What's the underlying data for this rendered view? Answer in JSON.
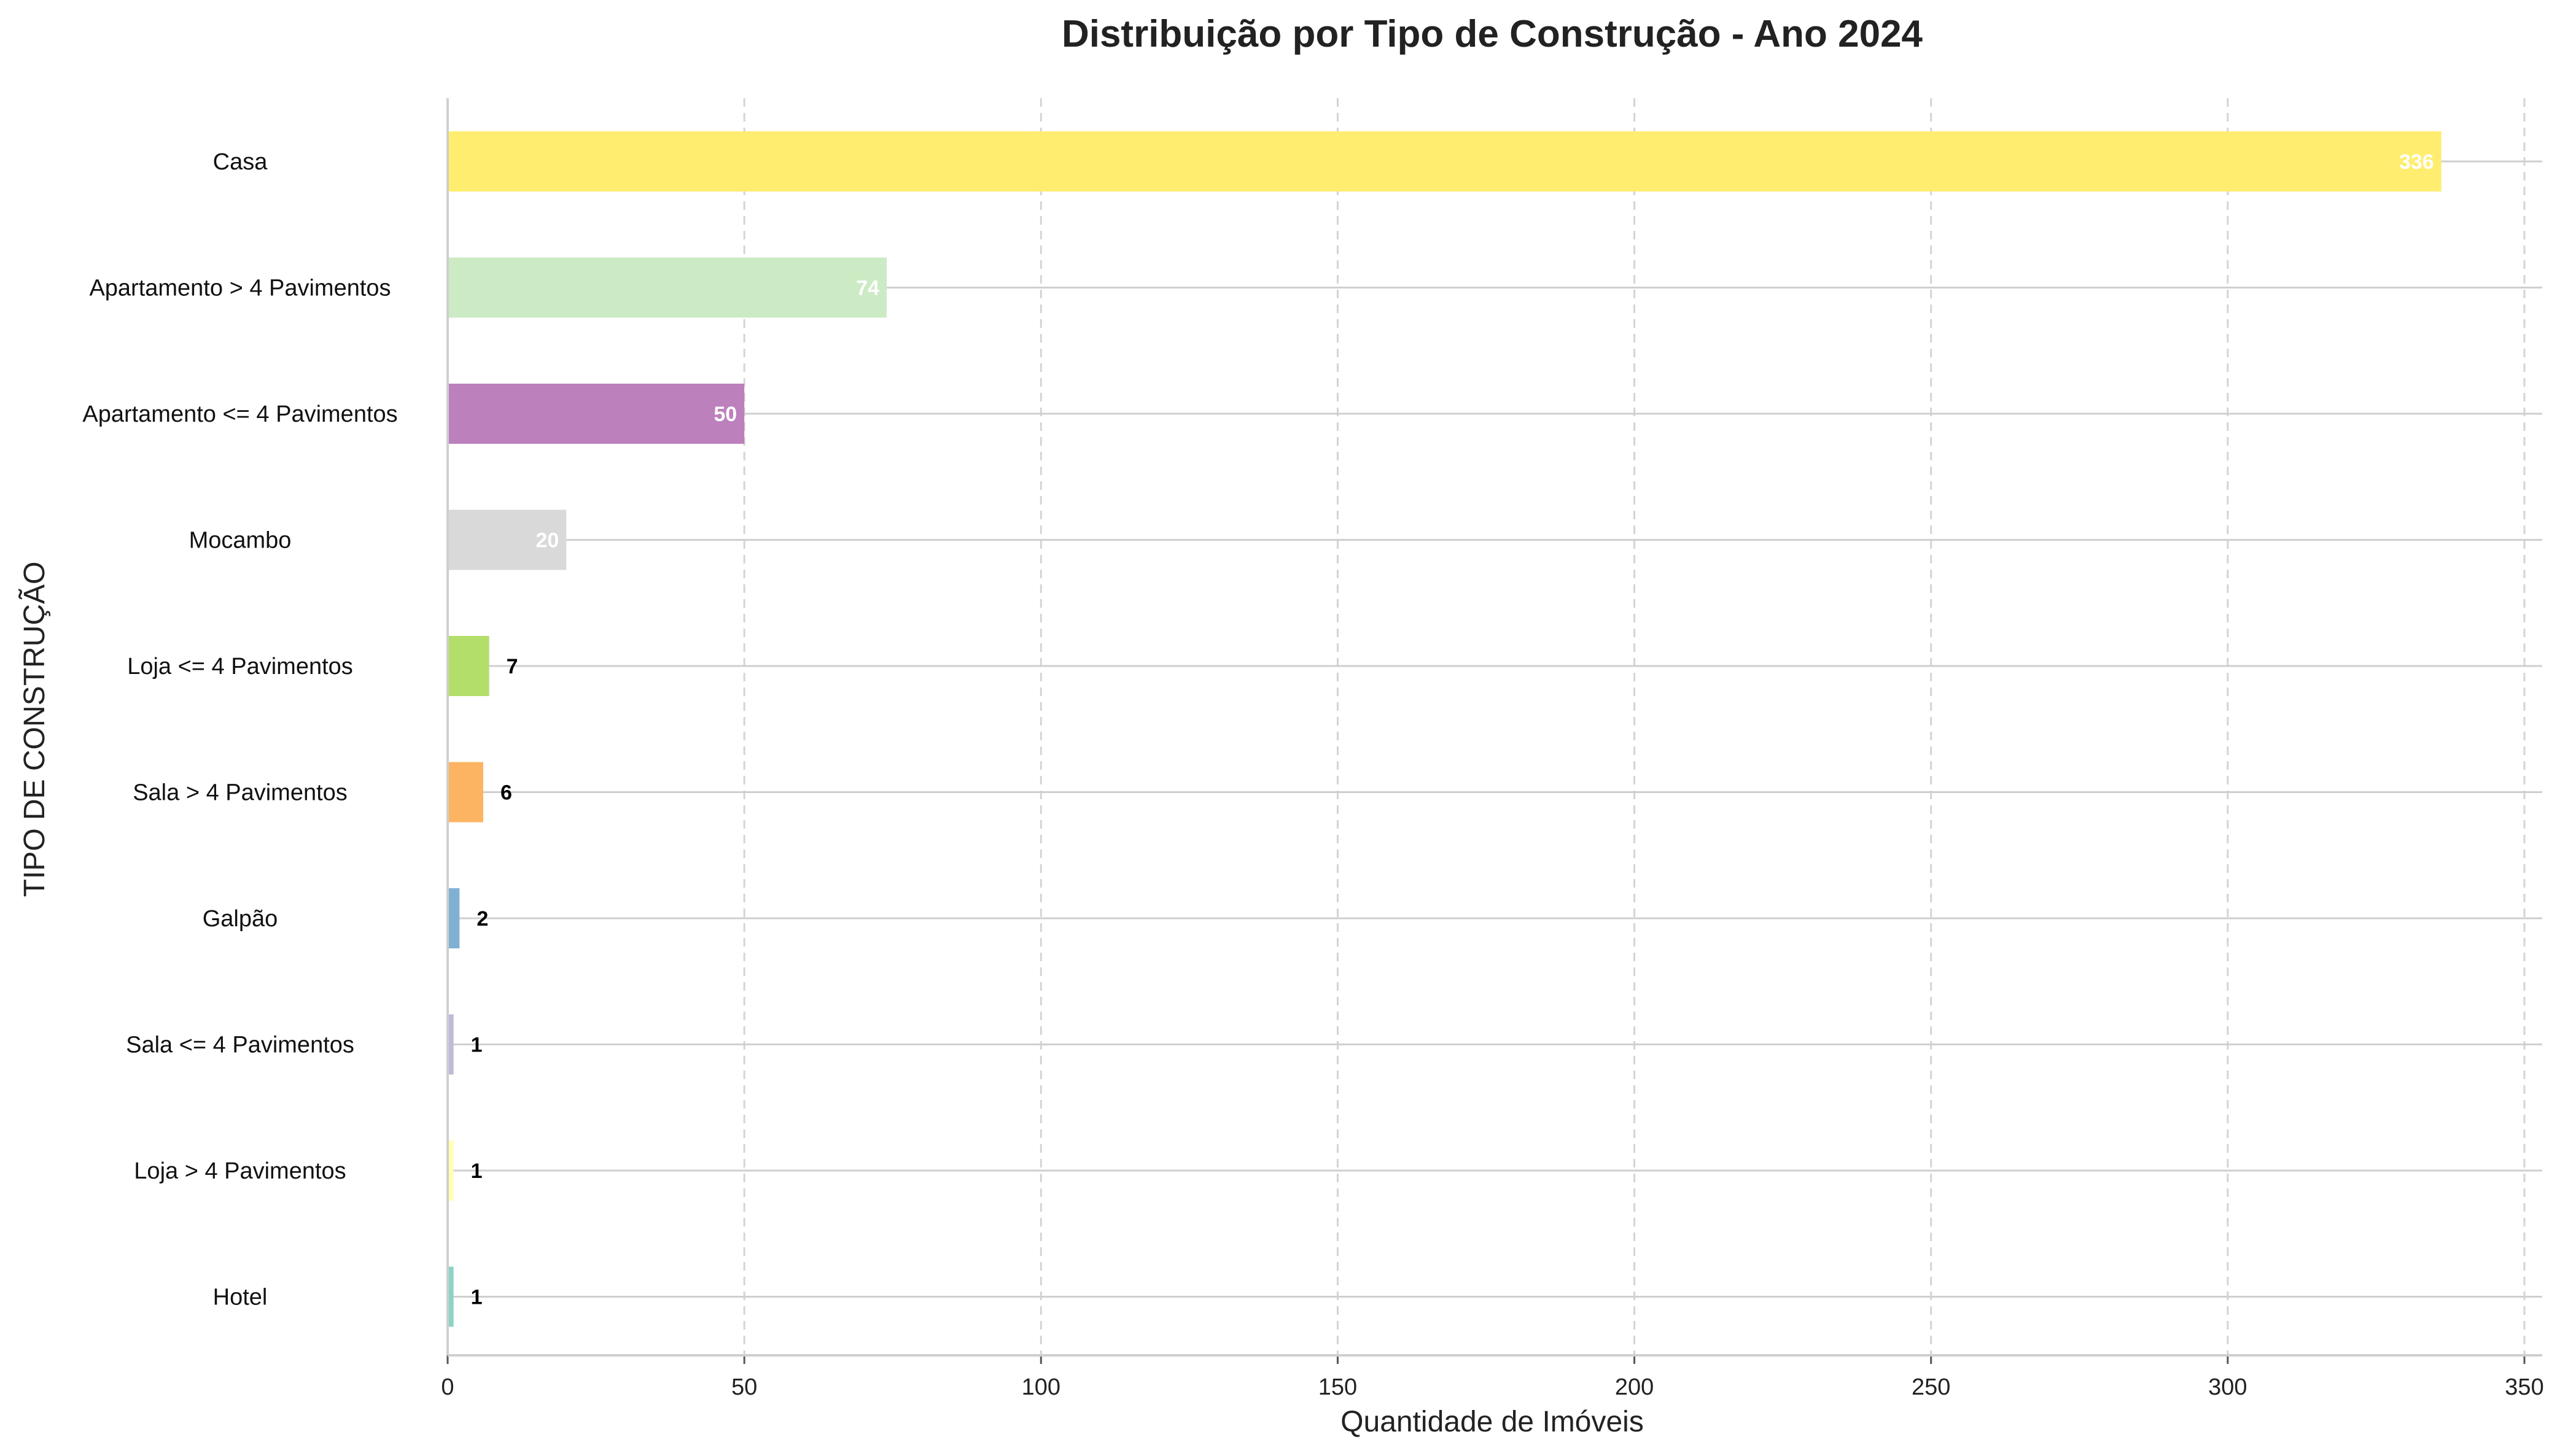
{
  "chart_data": {
    "type": "bar",
    "orientation": "horizontal",
    "title": "Distribuição por Tipo de Construção - Ano 2024",
    "xlabel": "Quantidade de Imóveis",
    "ylabel": "TIPO DE CONSTRUÇÃO",
    "xlim": [
      0,
      353
    ],
    "x_ticks": [
      0,
      50,
      100,
      150,
      200,
      250,
      300,
      350
    ],
    "grid": "x dashed, y solid",
    "legend": "none",
    "categories": [
      "Casa",
      "Apartamento > 4 Pavimentos",
      "Apartamento <= 4 Pavimentos",
      "Mocambo",
      "Loja <= 4 Pavimentos",
      "Sala > 4 Pavimentos",
      "Galpão",
      "Sala <= 4 Pavimentos",
      "Loja > 4 Pavimentos",
      "Hotel"
    ],
    "values": [
      336,
      74,
      50,
      20,
      7,
      6,
      2,
      1,
      1,
      1
    ],
    "colors": [
      "#ffed6f",
      "#ccebc5",
      "#bc80bd",
      "#d9d9d9",
      "#b3de69",
      "#fdb462",
      "#80b1d3",
      "#bebada",
      "#ffffb3",
      "#8dd3c7"
    ],
    "label_colors": [
      "#ffffff",
      "#ffffff",
      "#ffffff",
      "#ffffff",
      "#000000",
      "#000000",
      "#000000",
      "#000000",
      "#000000",
      "#000000"
    ]
  }
}
